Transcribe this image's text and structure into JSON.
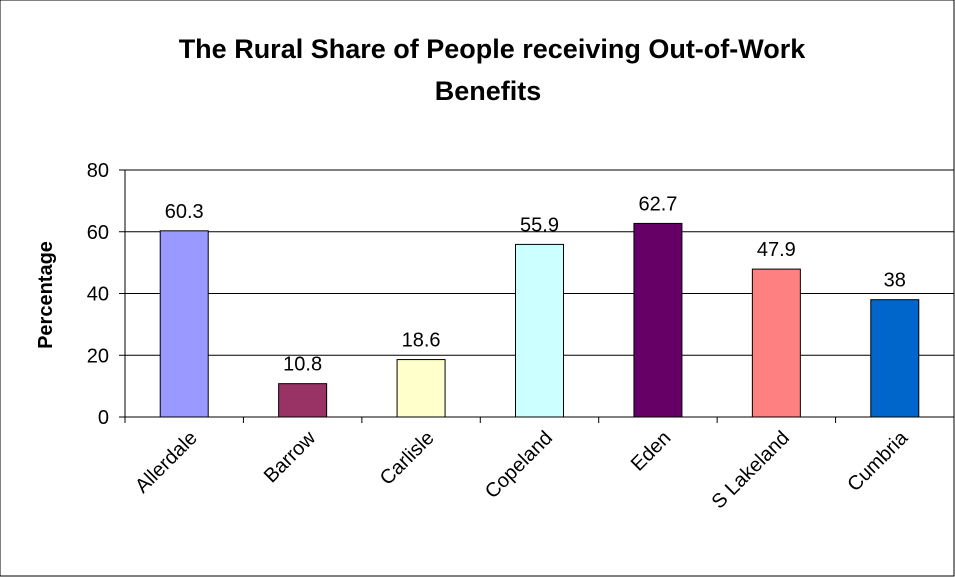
{
  "chart_data": {
    "type": "bar",
    "title_lines": [
      "The Rural Share of People receiving Out-of-Work",
      "Benefits"
    ],
    "ylabel": "Percentage",
    "xlabel": "",
    "categories": [
      "Allerdale",
      "Barrow",
      "Carlisle",
      "Copeland",
      "Eden",
      "S Lakeland",
      "Cumbria"
    ],
    "values": [
      60.3,
      10.8,
      18.6,
      55.9,
      62.7,
      47.9,
      38
    ],
    "value_labels": [
      "60.3",
      "10.8",
      "18.6",
      "55.9",
      "62.7",
      "47.9",
      "38"
    ],
    "bar_colors": [
      "#9999FF",
      "#993366",
      "#FFFFCC",
      "#CCFFFF",
      "#660066",
      "#FF8080",
      "#0066CC"
    ],
    "ylim": [
      0,
      80
    ],
    "yticks": [
      0,
      20,
      40,
      60,
      80
    ],
    "grid": true,
    "legend": "none"
  }
}
